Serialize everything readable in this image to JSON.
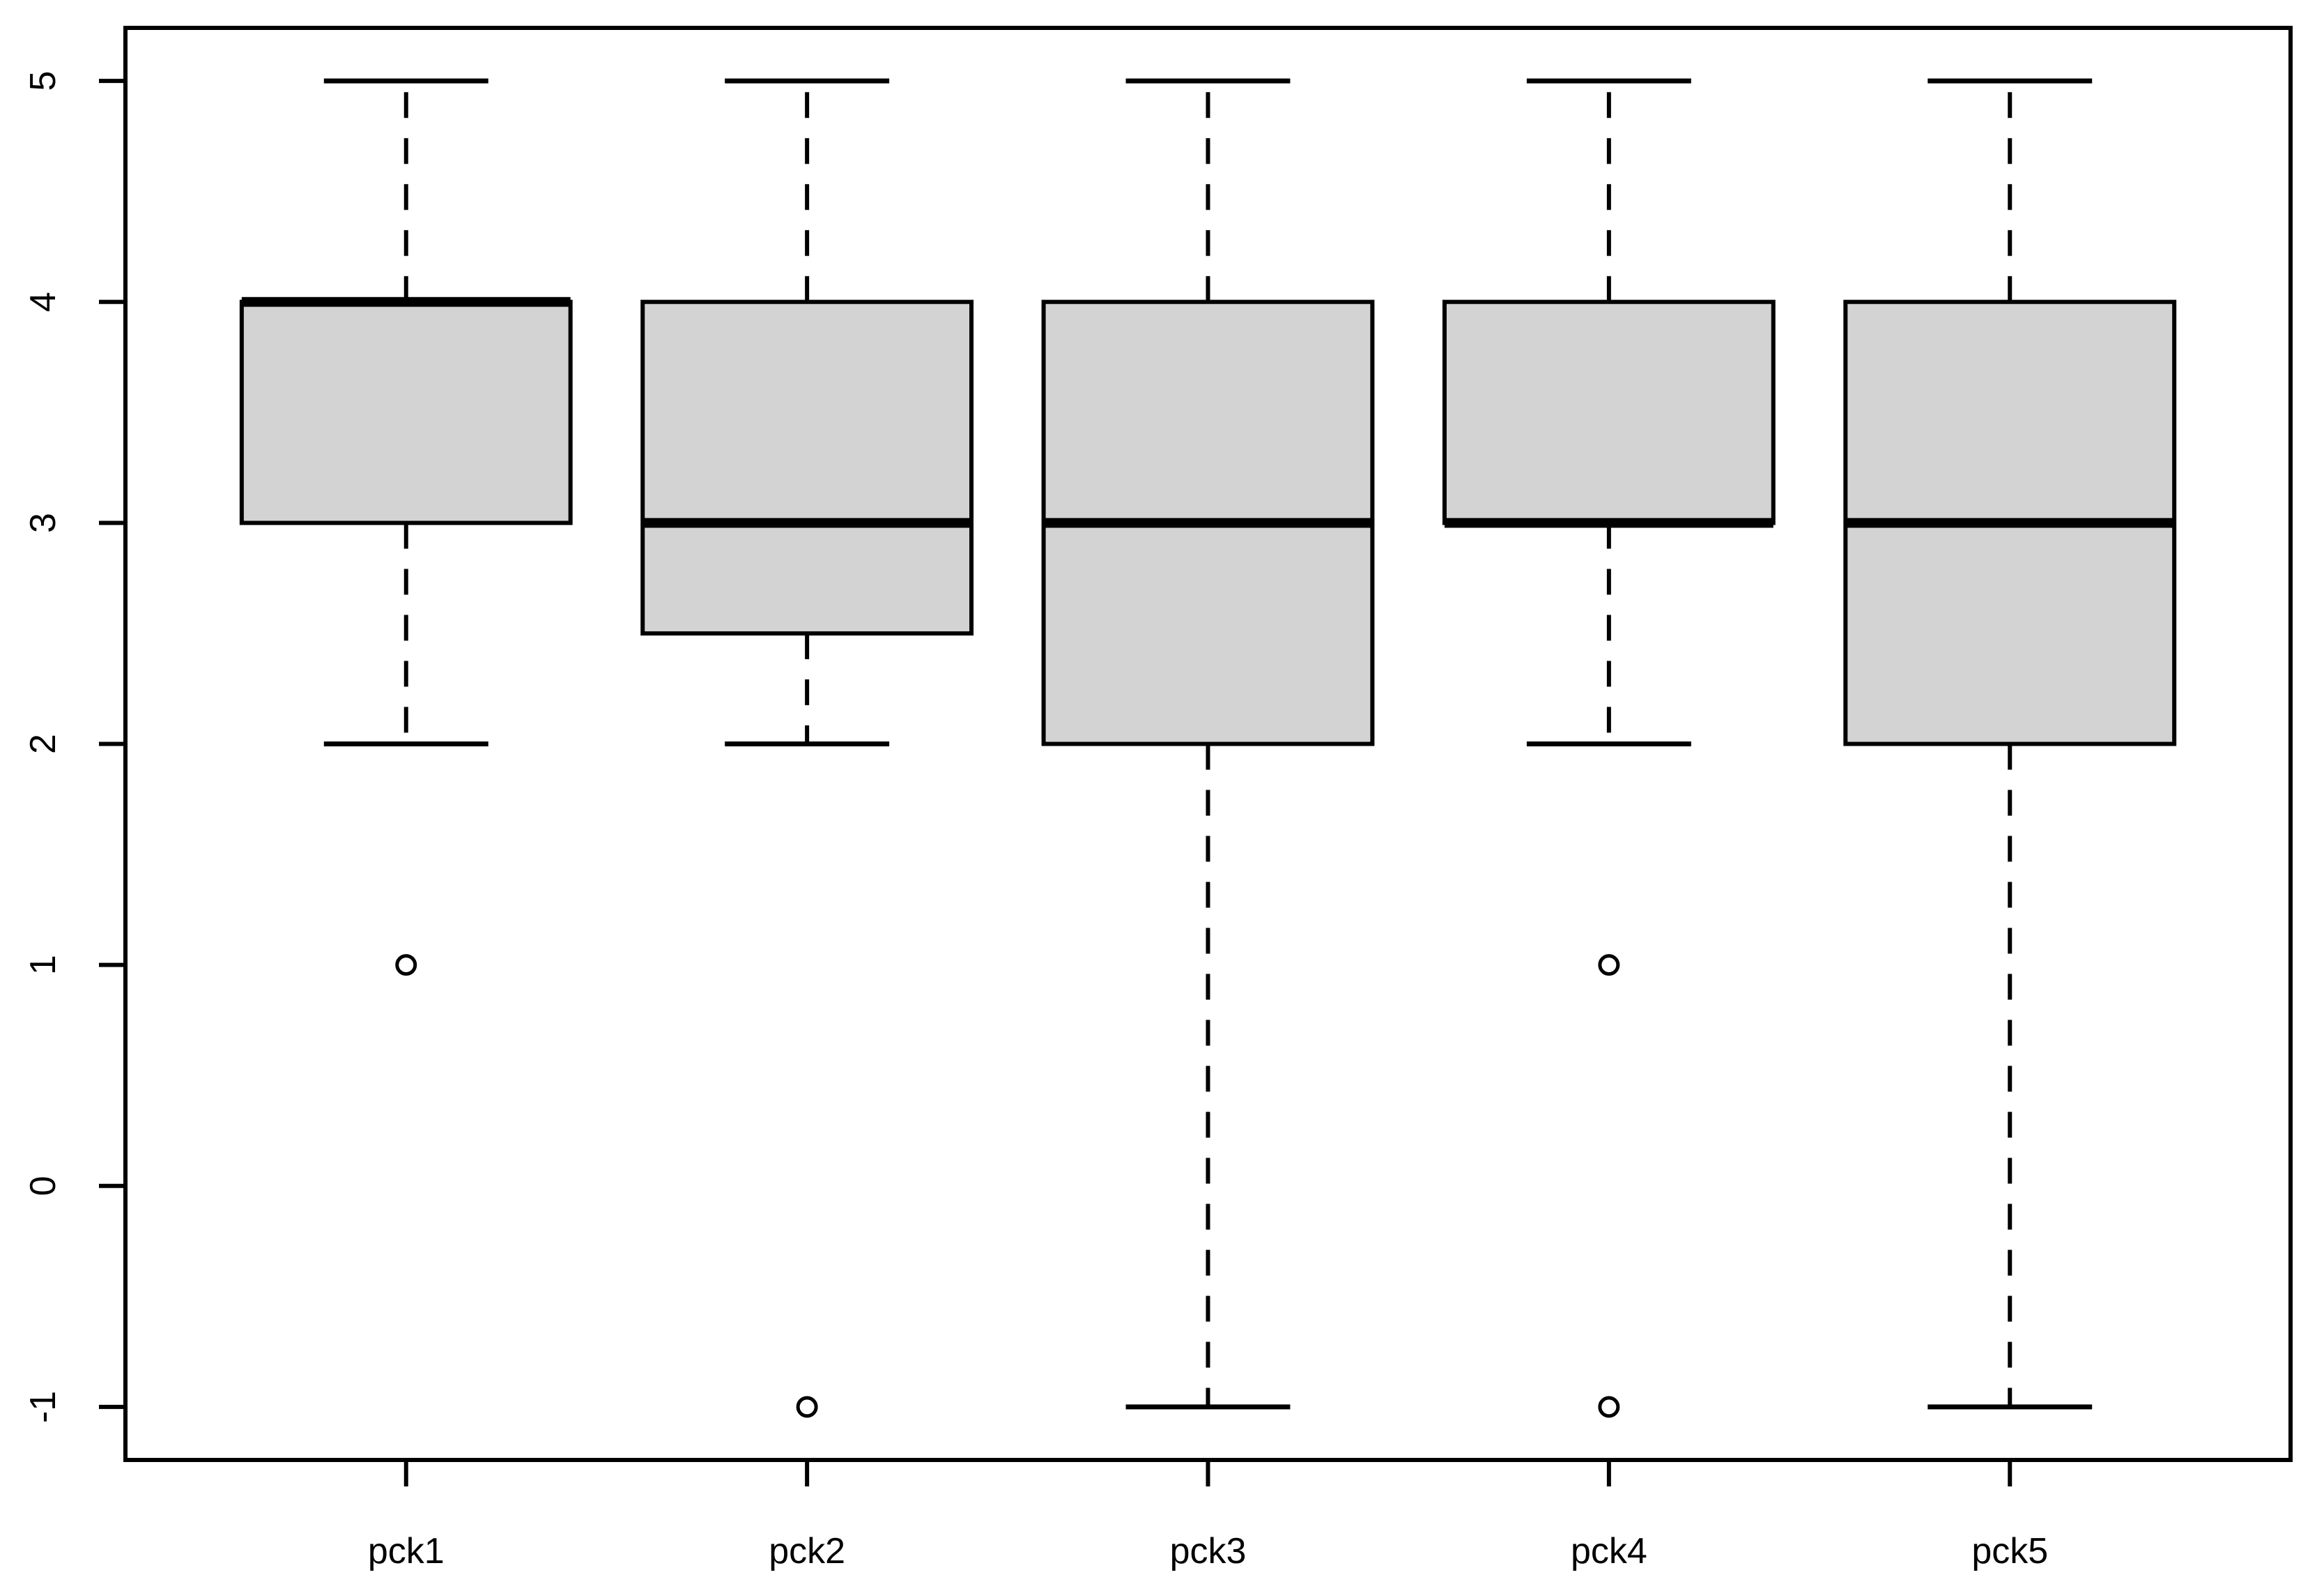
{
  "figure": {
    "background": "#ffffff"
  },
  "chart_data": {
    "type": "boxplot",
    "title": "",
    "xlabel": "",
    "ylabel": "",
    "categories": [
      "pck1",
      "pck2",
      "pck3",
      "pck4",
      "pck5"
    ],
    "series": [
      {
        "name": "pck1",
        "q1": 3,
        "median": 4,
        "q3": 4,
        "whisker_low": 2,
        "whisker_high": 5,
        "outliers": [
          1
        ]
      },
      {
        "name": "pck2",
        "q1": 2.5,
        "median": 3,
        "q3": 4,
        "whisker_low": 2,
        "whisker_high": 5,
        "outliers": [
          -1
        ]
      },
      {
        "name": "pck3",
        "q1": 2,
        "median": 3,
        "q3": 4,
        "whisker_low": -1,
        "whisker_high": 5,
        "outliers": []
      },
      {
        "name": "pck4",
        "q1": 3,
        "median": 3,
        "q3": 4,
        "whisker_low": 2,
        "whisker_high": 5,
        "outliers": [
          1,
          -1
        ]
      },
      {
        "name": "pck5",
        "q1": 2,
        "median": 3,
        "q3": 4,
        "whisker_low": -1,
        "whisker_high": 5,
        "outliers": []
      }
    ],
    "x_positions": [
      1,
      2,
      3,
      4,
      5
    ],
    "y_ticks": [
      -1,
      0,
      1,
      2,
      3,
      4,
      5
    ],
    "y_tick_labels": [
      "-1",
      "0",
      "1",
      "2",
      "3",
      "4",
      "5"
    ],
    "ylim": [
      -1.24,
      5.24
    ],
    "xlim": [
      0.3,
      5.7
    ],
    "box_width": 0.82,
    "cap_width": 0.41,
    "grid": false,
    "legend": null,
    "colors": {
      "box_fill": "#d3d3d3",
      "stroke": "#000000",
      "background": "#ffffff"
    }
  }
}
